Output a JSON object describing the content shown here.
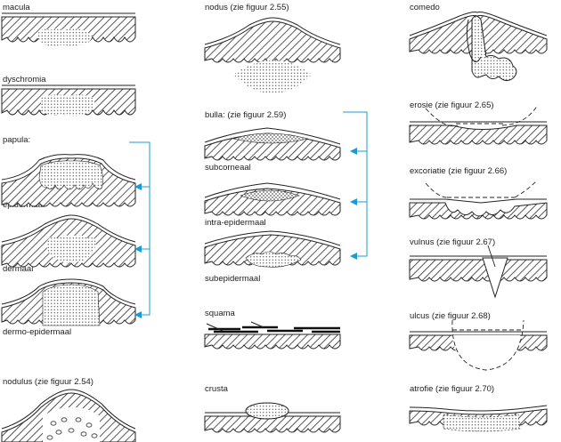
{
  "labels": {
    "macula": "macula",
    "dyschromia": "dyschromia",
    "papula": "papula:",
    "epidermaal": "epidermaal",
    "dermaal": "dermaal",
    "dermo_epidermaal": "dermo-epidermaal",
    "nodulus": "nodulus (zie figuur 2.54)",
    "nodus": "nodus (zie figuur 2.55)",
    "bulla": "bulla: (zie figuur 2.59)",
    "subcorneaal": "subcorneaal",
    "intra_epidermaal": "intra-epidermaal",
    "subepidermaal": "subepidermaal",
    "squama": "squama",
    "crusta": "crusta",
    "comedo": "comedo",
    "erosie": "erosie (zie figuur 2.65)",
    "excoriatie": "excoriatie (zie figuur 2.66)",
    "vulnus": "vulnus (zie figuur 2.67)",
    "ulcus": "ulcus (zie figuur 2.68)",
    "atrofie": "atrofie (zie figuur 2.70)"
  },
  "colors": {
    "arrow": "#1a9bd6",
    "ink": "#222222"
  }
}
